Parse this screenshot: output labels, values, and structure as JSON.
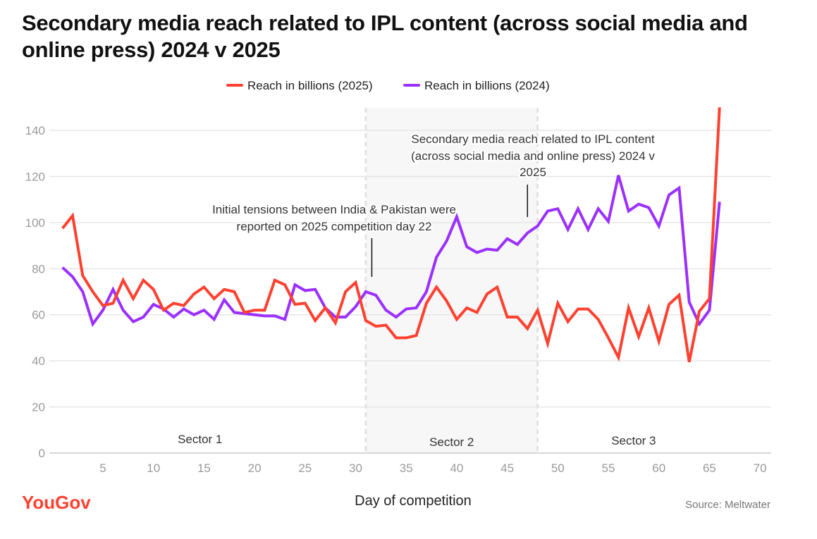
{
  "chart_data": {
    "type": "line",
    "title": "Secondary media reach related to IPL content (across social media and online press) 2024 v 2025",
    "xlabel": "Day of competition",
    "ylabel": "",
    "xlim": [
      0,
      70
    ],
    "ylim": [
      0,
      150
    ],
    "xticks": [
      5,
      10,
      15,
      20,
      25,
      30,
      35,
      40,
      45,
      50,
      55,
      60,
      65,
      70
    ],
    "yticks": [
      0,
      20,
      40,
      60,
      80,
      100,
      120,
      140
    ],
    "grid": "horizontal",
    "legend_position": "top",
    "colors": {
      "2025": "#ff4130",
      "2024": "#9b30ff"
    },
    "series": [
      {
        "name": "Reach in billions (2025)",
        "color": "#ff4130",
        "x": [
          1,
          2,
          3,
          4,
          5,
          6,
          7,
          8,
          9,
          10,
          11,
          12,
          13,
          14,
          15,
          16,
          17,
          18,
          19,
          20,
          21,
          22,
          23,
          24,
          25,
          26,
          27,
          28,
          29,
          30,
          31,
          32,
          33,
          34,
          35,
          36,
          37,
          38,
          39,
          40,
          41,
          42,
          43,
          44,
          45,
          46,
          47,
          48,
          49,
          50,
          51,
          52,
          53,
          54,
          55,
          56,
          57,
          58,
          59,
          60,
          61,
          62,
          63,
          64,
          65,
          66
        ],
        "values": [
          97.5,
          103,
          77,
          70,
          64,
          65,
          75,
          67,
          75,
          71,
          62,
          65,
          64,
          69,
          72,
          67,
          71,
          70,
          61,
          62,
          62,
          75,
          73,
          64.5,
          65,
          57.5,
          63,
          56.5,
          70,
          74,
          57.5,
          55,
          55.5,
          50,
          50,
          51,
          65,
          72,
          66,
          58,
          63,
          61,
          69,
          72,
          59,
          59,
          54,
          62,
          47.5,
          65,
          57,
          62.5,
          62.5,
          58,
          50,
          41.5,
          63,
          50.5,
          63,
          48.5,
          64.5,
          68.5,
          39.5,
          61.5,
          67,
          150
        ]
      },
      {
        "name": "Reach in billions (2024)",
        "color": "#9b30ff",
        "x": [
          1,
          2,
          3,
          4,
          5,
          6,
          7,
          8,
          9,
          10,
          11,
          12,
          13,
          14,
          15,
          16,
          17,
          18,
          19,
          20,
          21,
          22,
          23,
          24,
          25,
          26,
          27,
          28,
          29,
          30,
          31,
          32,
          33,
          34,
          35,
          36,
          37,
          38,
          39,
          40,
          41,
          42,
          43,
          44,
          45,
          46,
          47,
          48,
          49,
          50,
          51,
          52,
          53,
          54,
          55,
          56,
          57,
          58,
          59,
          60,
          61,
          62,
          63,
          64,
          65,
          66
        ],
        "values": [
          80.5,
          76.5,
          70,
          56,
          62,
          71,
          62,
          57,
          59,
          64.5,
          62.5,
          59,
          62.5,
          60,
          62,
          58,
          66.5,
          61,
          60.5,
          60,
          59.5,
          59.5,
          58,
          73,
          70.5,
          71,
          63,
          59,
          59,
          63.5,
          70,
          68.5,
          62,
          59,
          62.5,
          63,
          70,
          85,
          92,
          102.5,
          89.5,
          87,
          88.5,
          88,
          93,
          90.5,
          95.5,
          98.5,
          105,
          106,
          97,
          106,
          97,
          106,
          100.5,
          120.5,
          105,
          108,
          106.5,
          98.5,
          112,
          115,
          65.5,
          56,
          62,
          109
        ]
      }
    ],
    "sectors": [
      {
        "label": "Sector 1",
        "from": 0,
        "to": 31
      },
      {
        "label": "Sector 2",
        "from": 31,
        "to": 48
      },
      {
        "label": "Sector 3",
        "from": 48,
        "to": 70
      }
    ],
    "annotations": [
      {
        "text_lines": [
          "Initial tensions between India & Pakistan were",
          "reported on 2025 competition day 22"
        ],
        "x": 31.6
      },
      {
        "text_lines": [
          "Secondary media reach related to IPL content",
          "(across social media and online press) 2024 v",
          "2025"
        ],
        "x": 47
      }
    ]
  },
  "footer": {
    "brand": "YouGov",
    "source": "Source: Meltwater"
  }
}
